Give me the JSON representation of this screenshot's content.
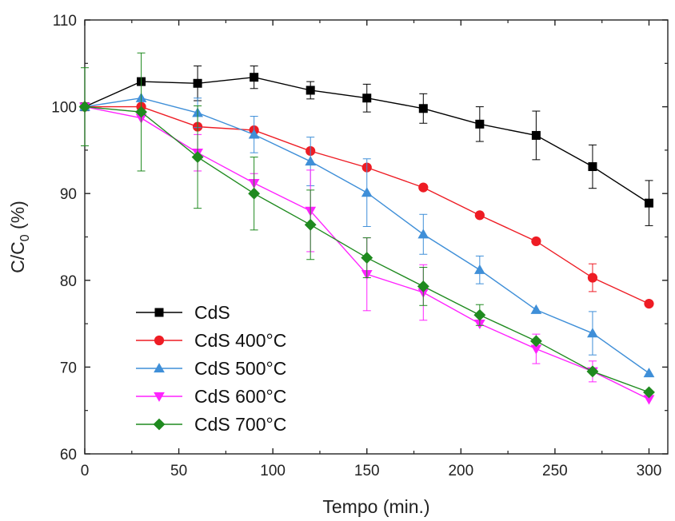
{
  "chart_data": {
    "type": "line",
    "xlabel": "Tempo (min.)",
    "ylabel_main": "C/C",
    "ylabel_sub": "0",
    "ylabel_unit": " (%)",
    "xlim": [
      0,
      310
    ],
    "ylim": [
      60,
      110
    ],
    "xticks": [
      0,
      50,
      100,
      150,
      200,
      250,
      300
    ],
    "yticks": [
      60,
      70,
      80,
      90,
      100,
      110
    ],
    "grid": false,
    "legend_position": "bottom-left",
    "x": [
      0,
      30,
      60,
      90,
      120,
      150,
      180,
      210,
      240,
      270,
      300
    ],
    "series": [
      {
        "name": "CdS",
        "color": "#000000",
        "marker": "square",
        "values": [
          100,
          102.9,
          102.7,
          103.4,
          101.9,
          101.0,
          99.8,
          98.0,
          96.7,
          93.1,
          88.9
        ],
        "errors": [
          0,
          0,
          2.0,
          1.3,
          1.0,
          1.6,
          1.7,
          2.0,
          2.8,
          2.5,
          2.6
        ]
      },
      {
        "name": "CdS 400°C",
        "color": "#ee1c24",
        "marker": "circle",
        "values": [
          100,
          100.0,
          97.7,
          97.3,
          94.9,
          93.0,
          90.7,
          87.5,
          84.5,
          80.3,
          77.3
        ],
        "errors": [
          0,
          0,
          0,
          0,
          0,
          0,
          0,
          0,
          0,
          1.6,
          0
        ]
      },
      {
        "name": "CdS 500°C",
        "color": "#3f8fd8",
        "marker": "triangle-up",
        "values": [
          100,
          101.0,
          99.3,
          96.8,
          93.7,
          90.1,
          85.3,
          81.2,
          76.6,
          73.9,
          69.3
        ],
        "errors": [
          0,
          0,
          1.7,
          2.1,
          2.8,
          3.9,
          2.3,
          1.6,
          0,
          2.5,
          0
        ]
      },
      {
        "name": "CdS 600°C",
        "color": "#ff22ff",
        "marker": "triangle-down",
        "values": [
          100,
          98.7,
          94.7,
          91.2,
          88.0,
          80.7,
          78.6,
          75.0,
          72.1,
          69.5,
          66.3
        ],
        "errors": [
          0,
          0,
          2.1,
          1.1,
          4.7,
          4.2,
          3.2,
          0,
          1.7,
          1.2,
          0
        ]
      },
      {
        "name": "CdS 700°C",
        "color": "#1f8a1f",
        "marker": "diamond",
        "values": [
          100,
          99.4,
          94.2,
          90.0,
          86.4,
          82.6,
          79.3,
          76.0,
          73.0,
          69.5,
          67.1
        ],
        "errors": [
          4.5,
          6.8,
          5.9,
          4.2,
          4.0,
          2.3,
          2.2,
          1.2,
          0,
          0,
          0
        ]
      }
    ]
  }
}
